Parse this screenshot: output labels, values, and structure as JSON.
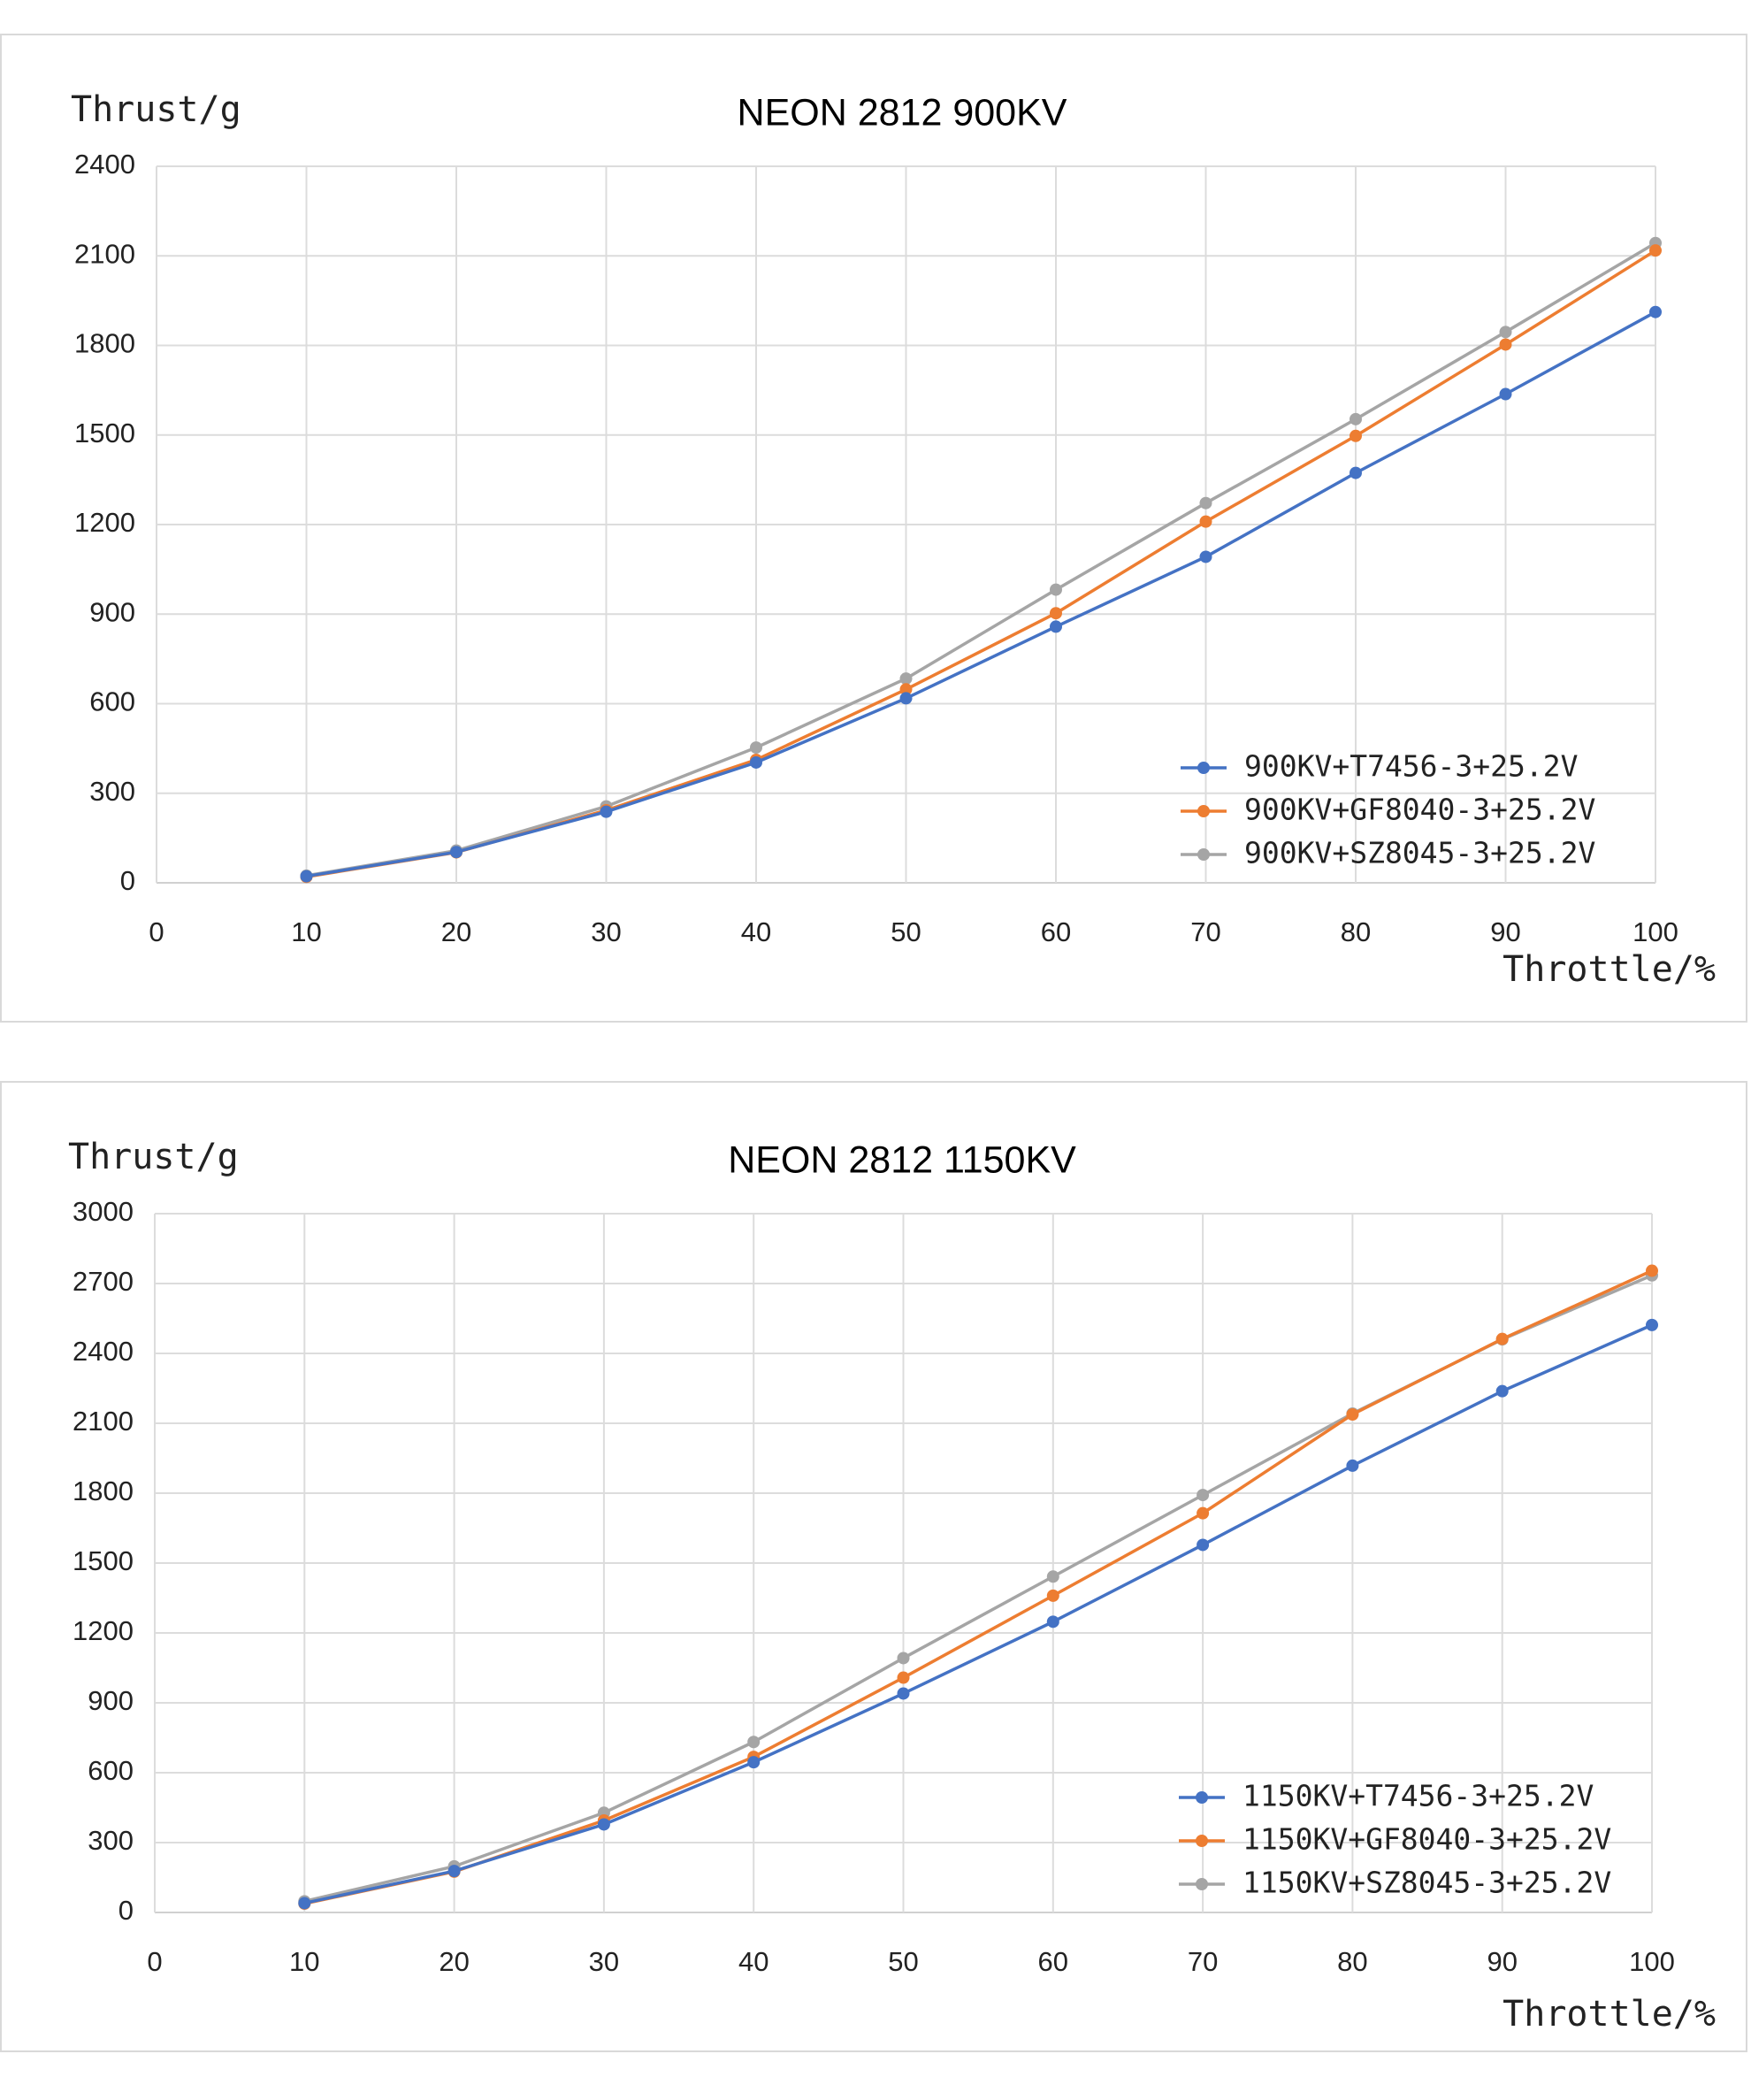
{
  "chart_data": [
    {
      "type": "line",
      "title": "NEON 2812 900KV",
      "xlabel": "Throttle/%",
      "ylabel": "Thrust/g",
      "xlim": [
        0,
        100
      ],
      "ylim": [
        0,
        2400
      ],
      "xticks": [
        "0",
        "10",
        "20",
        "30",
        "40",
        "50",
        "60",
        "70",
        "80",
        "90",
        "100"
      ],
      "yticks": [
        "0",
        "300",
        "600",
        "900",
        "1200",
        "1500",
        "1800",
        "2100",
        "2400"
      ],
      "grid": true,
      "legend_position": "bottom-right",
      "x": [
        10,
        20,
        30,
        40,
        50,
        60,
        70,
        80,
        90,
        100
      ],
      "series": [
        {
          "name": "900KV+T7456-3+25.2V",
          "color": "#4472C4",
          "values": [
            22,
            103,
            238,
            403,
            618,
            858,
            1092,
            1373,
            1637,
            1912
          ]
        },
        {
          "name": "900KV+GF8040-3+25.2V",
          "color": "#ED7D31",
          "values": [
            20,
            102,
            243,
            412,
            648,
            903,
            1210,
            1497,
            1803,
            2118
          ]
        },
        {
          "name": "900KV+SZ8045-3+25.2V",
          "color": "#A5A5A5",
          "values": [
            24,
            108,
            256,
            453,
            684,
            982,
            1272,
            1553,
            1845,
            2143
          ]
        }
      ]
    },
    {
      "type": "line",
      "title": "NEON 2812 1150KV",
      "xlabel": "Throttle/%",
      "ylabel": "Thrust/g",
      "xlim": [
        0,
        100
      ],
      "ylim": [
        0,
        3000
      ],
      "xticks": [
        "0",
        "10",
        "20",
        "30",
        "40",
        "50",
        "60",
        "70",
        "80",
        "90",
        "100"
      ],
      "yticks": [
        "0",
        "300",
        "600",
        "900",
        "1200",
        "1500",
        "1800",
        "2100",
        "2400",
        "2700",
        "3000"
      ],
      "grid": true,
      "legend_position": "bottom-right",
      "x": [
        10,
        20,
        30,
        40,
        50,
        60,
        70,
        80,
        90,
        100
      ],
      "series": [
        {
          "name": "1150KV+T7456-3+25.2V",
          "color": "#4472C4",
          "values": [
            40,
            178,
            378,
            645,
            940,
            1248,
            1578,
            1918,
            2238,
            2522
          ]
        },
        {
          "name": "1150KV+GF8040-3+25.2V",
          "color": "#ED7D31",
          "values": [
            38,
            175,
            395,
            668,
            1008,
            1360,
            1714,
            2138,
            2462,
            2755
          ]
        },
        {
          "name": "1150KV+SZ8045-3+25.2V",
          "color": "#A5A5A5",
          "values": [
            48,
            198,
            428,
            732,
            1092,
            1442,
            1792,
            2142,
            2460,
            2735
          ]
        }
      ]
    }
  ]
}
